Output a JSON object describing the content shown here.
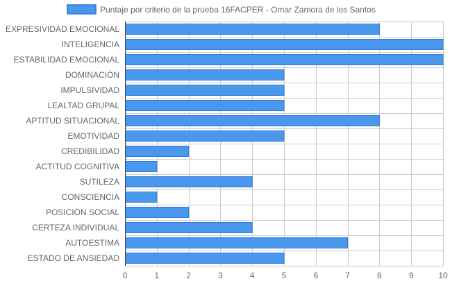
{
  "chart_data": {
    "type": "bar",
    "orientation": "horizontal",
    "categories": [
      "EXPRESIVIDAD EMOCIONAL",
      "INTELIGENCIA",
      "ESTABILIDAD EMOCIONAL",
      "DOMINACIÓN",
      "IMPULSIVIDAD",
      "LEALTAD GRUPAL",
      "APTITUD SITUACIONAL",
      "EMOTIVIDAD",
      "CREDIBILIDAD",
      "ACTITUD COGNITIVA",
      "SUTILEZA",
      "CONSCIENCIA",
      "POSICIÓN SOCIAL",
      "CERTEZA INDIVIDUAL",
      "AUTOESTIMA",
      "ESTADO DE ANSIEDAD"
    ],
    "series": [
      {
        "name": "Puntaje por criterio de la prueba 16FACPER - Omar Zamora de los Santos",
        "values": [
          8,
          10,
          10,
          5,
          5,
          5,
          8,
          5,
          2,
          1,
          4,
          1,
          2,
          4,
          7,
          5
        ],
        "color": "#4a98ec",
        "border_color": "#3277d6"
      }
    ],
    "xlim": [
      0,
      10
    ],
    "xticks": [
      "0",
      "1",
      "2",
      "3",
      "4",
      "5",
      "6",
      "7",
      "8",
      "9",
      "10"
    ],
    "grid": true,
    "grid_color": "#cccccc",
    "legend": "top-center"
  }
}
